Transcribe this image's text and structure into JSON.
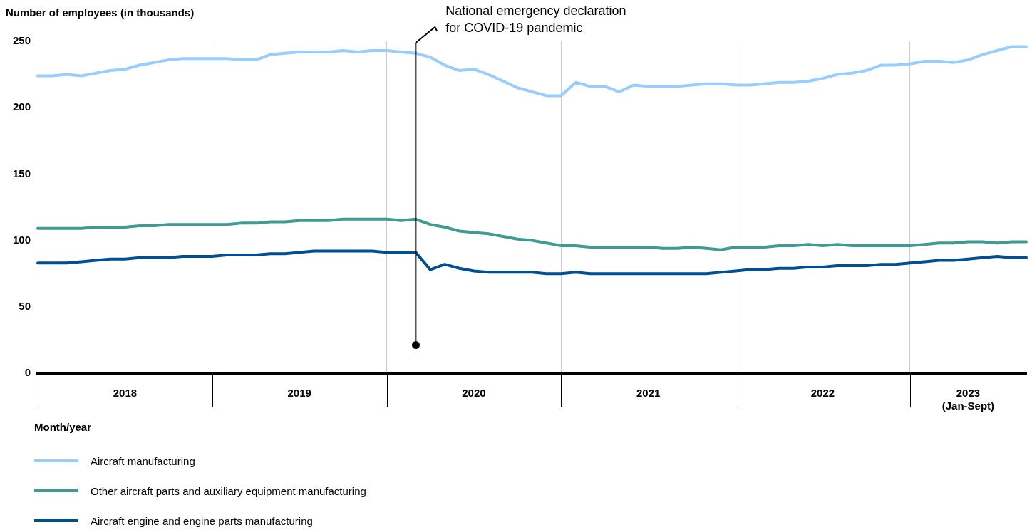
{
  "chart_data": {
    "type": "line",
    "ylabel": "Number of employees (in thousands)",
    "xlabel": "Month/year",
    "x": [
      "2018-01",
      "2018-02",
      "2018-03",
      "2018-04",
      "2018-05",
      "2018-06",
      "2018-07",
      "2018-08",
      "2018-09",
      "2018-10",
      "2018-11",
      "2018-12",
      "2019-01",
      "2019-02",
      "2019-03",
      "2019-04",
      "2019-05",
      "2019-06",
      "2019-07",
      "2019-08",
      "2019-09",
      "2019-10",
      "2019-11",
      "2019-12",
      "2020-01",
      "2020-02",
      "2020-03",
      "2020-04",
      "2020-05",
      "2020-06",
      "2020-07",
      "2020-08",
      "2020-09",
      "2020-10",
      "2020-11",
      "2020-12",
      "2021-01",
      "2021-02",
      "2021-03",
      "2021-04",
      "2021-05",
      "2021-06",
      "2021-07",
      "2021-08",
      "2021-09",
      "2021-10",
      "2021-11",
      "2021-12",
      "2022-01",
      "2022-02",
      "2022-03",
      "2022-04",
      "2022-05",
      "2022-06",
      "2022-07",
      "2022-08",
      "2022-09",
      "2022-10",
      "2022-11",
      "2022-12",
      "2023-01",
      "2023-02",
      "2023-03",
      "2023-04",
      "2023-05",
      "2023-06",
      "2023-07",
      "2023-08",
      "2023-09"
    ],
    "series": [
      {
        "name": "Aircraft manufacturing",
        "color": "#99ccff",
        "values": [
          224,
          224,
          225,
          224,
          226,
          228,
          229,
          232,
          234,
          236,
          237,
          237,
          237,
          237,
          236,
          236,
          240,
          241,
          242,
          242,
          242,
          243,
          242,
          243,
          243,
          242,
          241,
          238,
          232,
          228,
          229,
          225,
          220,
          215,
          212,
          209,
          209,
          219,
          216,
          216,
          212,
          217,
          216,
          216,
          216,
          217,
          218,
          218,
          217,
          217,
          218,
          219,
          219,
          220,
          222,
          225,
          226,
          228,
          232,
          232,
          233,
          235,
          235,
          234,
          236,
          240,
          243,
          246,
          246
        ]
      },
      {
        "name": "Other aircraft parts and auxiliary equipment manufacturing",
        "color": "#3f9a91",
        "values": [
          109,
          109,
          109,
          109,
          110,
          110,
          110,
          111,
          111,
          112,
          112,
          112,
          112,
          112,
          113,
          113,
          114,
          114,
          115,
          115,
          115,
          116,
          116,
          116,
          116,
          115,
          116,
          112,
          110,
          107,
          106,
          105,
          103,
          101,
          100,
          98,
          96,
          96,
          95,
          95,
          95,
          95,
          95,
          94,
          94,
          95,
          94,
          93,
          95,
          95,
          95,
          96,
          96,
          97,
          96,
          97,
          96,
          96,
          96,
          96,
          96,
          97,
          98,
          98,
          99,
          99,
          98,
          99,
          99
        ]
      },
      {
        "name": "Aircraft engine and engine parts manufacturing",
        "color": "#004f93",
        "values": [
          83,
          83,
          83,
          84,
          85,
          86,
          86,
          87,
          87,
          87,
          88,
          88,
          88,
          89,
          89,
          89,
          90,
          90,
          91,
          92,
          92,
          92,
          92,
          92,
          91,
          91,
          91,
          78,
          82,
          79,
          77,
          76,
          76,
          76,
          76,
          75,
          75,
          76,
          75,
          75,
          75,
          75,
          75,
          75,
          75,
          75,
          75,
          76,
          77,
          78,
          78,
          79,
          79,
          80,
          80,
          81,
          81,
          81,
          82,
          82,
          83,
          84,
          85,
          85,
          86,
          87,
          88,
          87,
          87
        ]
      }
    ],
    "xlim": [
      "2018-01",
      "2023-09"
    ],
    "xticks": [
      {
        "value": "2018-01",
        "label": null
      },
      {
        "value": "2018-07",
        "label": "2018"
      },
      {
        "value": "2019-01",
        "label": null
      },
      {
        "value": "2019-07",
        "label": "2019"
      },
      {
        "value": "2020-01",
        "label": null
      },
      {
        "value": "2020-07",
        "label": "2020"
      },
      {
        "value": "2021-01",
        "label": null
      },
      {
        "value": "2021-07",
        "label": "2021"
      },
      {
        "value": "2022-01",
        "label": null
      },
      {
        "value": "2022-07",
        "label": "2022"
      },
      {
        "value": "2023-01",
        "label": null
      },
      {
        "value": "2023-05",
        "label": "2023\n(Jan-Sept)"
      }
    ],
    "ylim": [
      0,
      250
    ],
    "yticks": [
      0,
      50,
      100,
      150,
      200,
      250
    ],
    "grid": "x",
    "legend": "bottom",
    "marker": "none",
    "line_style": "solid",
    "ref_lines": [
      {
        "axis": "x",
        "value": "2020-03",
        "label": "National emergency declaration\nfor COVID-19 pandemic",
        "color": "#000000"
      }
    ]
  }
}
